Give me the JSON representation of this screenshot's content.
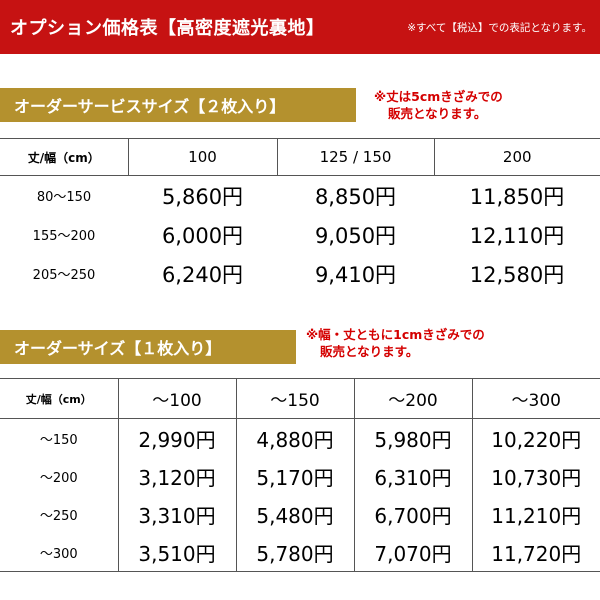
{
  "header": {
    "title": "オプション価格表【高密度遮光裏地】",
    "note": "※すべて【税込】での表記となります。"
  },
  "section1": {
    "banner": "オーダーサービスサイズ【２枚入り】",
    "note_line1": "※丈は5cmきざみでの",
    "note_line2": "販売となります。",
    "corner": "丈/幅（cm）",
    "columns": [
      "100",
      "125 / 150",
      "200"
    ],
    "rows": [
      {
        "size": "80～150",
        "prices": [
          "5,860円",
          "8,850円",
          "11,850円"
        ]
      },
      {
        "size": "155～200",
        "prices": [
          "6,000円",
          "9,050円",
          "12,110円"
        ]
      },
      {
        "size": "205～250",
        "prices": [
          "6,240円",
          "9,410円",
          "12,580円"
        ]
      }
    ]
  },
  "section2": {
    "banner": "オーダーサイズ【１枚入り】",
    "note_line1": "※幅・丈ともに1cmきざみでの",
    "note_line2": "販売となります。",
    "corner": "丈/幅（cm）",
    "columns": [
      "～100",
      "～150",
      "～200",
      "～300"
    ],
    "rows": [
      {
        "size": "～150",
        "prices": [
          "2,990円",
          "4,880円",
          "5,980円",
          "10,220円"
        ]
      },
      {
        "size": "～200",
        "prices": [
          "3,120円",
          "5,170円",
          "6,310円",
          "10,730円"
        ]
      },
      {
        "size": "～250",
        "prices": [
          "3,310円",
          "5,480円",
          "6,700円",
          "11,210円"
        ]
      },
      {
        "size": "～300",
        "prices": [
          "3,510円",
          "5,780円",
          "7,070円",
          "11,720円"
        ]
      }
    ]
  },
  "colors": {
    "header_red": "#c61212",
    "banner_gold": "#b4912e",
    "note_red": "#d40000"
  }
}
